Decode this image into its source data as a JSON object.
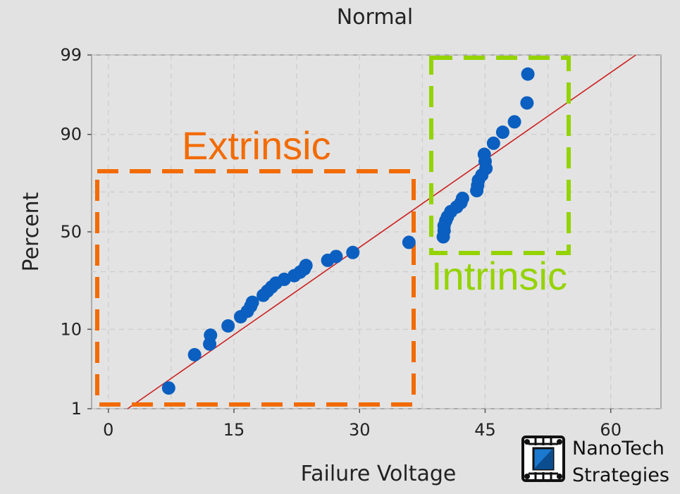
{
  "chart_data": {
    "type": "scatter",
    "title": "Normal",
    "xlabel": "Failure Voltage",
    "ylabel": "Percent",
    "xlim": [
      -2,
      66
    ],
    "ylim": [
      1,
      99
    ],
    "y_scale": "normal-probability",
    "x_ticks": [
      0,
      15,
      30,
      45,
      60
    ],
    "y_ticks": [
      1,
      10,
      50,
      90,
      99
    ],
    "grid": true,
    "fit_line": {
      "color": "#cc2020",
      "x": [
        2.3,
        63
      ],
      "y": [
        1,
        99
      ]
    },
    "series": [
      {
        "color": "#0a5fc0",
        "points": [
          [
            7.2,
            2.0
          ],
          [
            10.3,
            5.3
          ],
          [
            12.1,
            7.0
          ],
          [
            12.2,
            8.7
          ],
          [
            14.3,
            10.8
          ],
          [
            15.8,
            13.2
          ],
          [
            16.6,
            14.8
          ],
          [
            17.0,
            16.4
          ],
          [
            17.2,
            17.7
          ],
          [
            18.5,
            20.2
          ],
          [
            19.0,
            21.8
          ],
          [
            19.5,
            23.4
          ],
          [
            20.0,
            25.0
          ],
          [
            21.0,
            26.6
          ],
          [
            22.2,
            28.2
          ],
          [
            22.9,
            29.8
          ],
          [
            23.4,
            31.3
          ],
          [
            23.6,
            32.9
          ],
          [
            26.2,
            35.4
          ],
          [
            27.2,
            37.3
          ],
          [
            29.2,
            39.3
          ],
          [
            35.9,
            44.5
          ],
          [
            40.0,
            47.4
          ],
          [
            40.1,
            50.6
          ],
          [
            40.1,
            53.2
          ],
          [
            40.3,
            55.8
          ],
          [
            40.5,
            57.8
          ],
          [
            40.9,
            60.5
          ],
          [
            41.6,
            62.8
          ],
          [
            42.1,
            64.9
          ],
          [
            42.3,
            67.0
          ],
          [
            44.0,
            70.6
          ],
          [
            44.1,
            72.9
          ],
          [
            44.2,
            75.1
          ],
          [
            44.6,
            77.2
          ],
          [
            45.1,
            79.8
          ],
          [
            45.0,
            82.3
          ],
          [
            44.9,
            84.6
          ],
          [
            46.0,
            87.8
          ],
          [
            47.1,
            90.5
          ],
          [
            48.5,
            92.6
          ],
          [
            50.0,
            95.5
          ],
          [
            50.1,
            98.1
          ]
        ]
      }
    ],
    "annotations": [
      {
        "text": "Extrinsic",
        "color": "#f26b00"
      },
      {
        "text": "Intrinsic",
        "color": "#94d300"
      }
    ]
  },
  "branding": {
    "line1": "NanoTech",
    "line2": "Strategies"
  }
}
